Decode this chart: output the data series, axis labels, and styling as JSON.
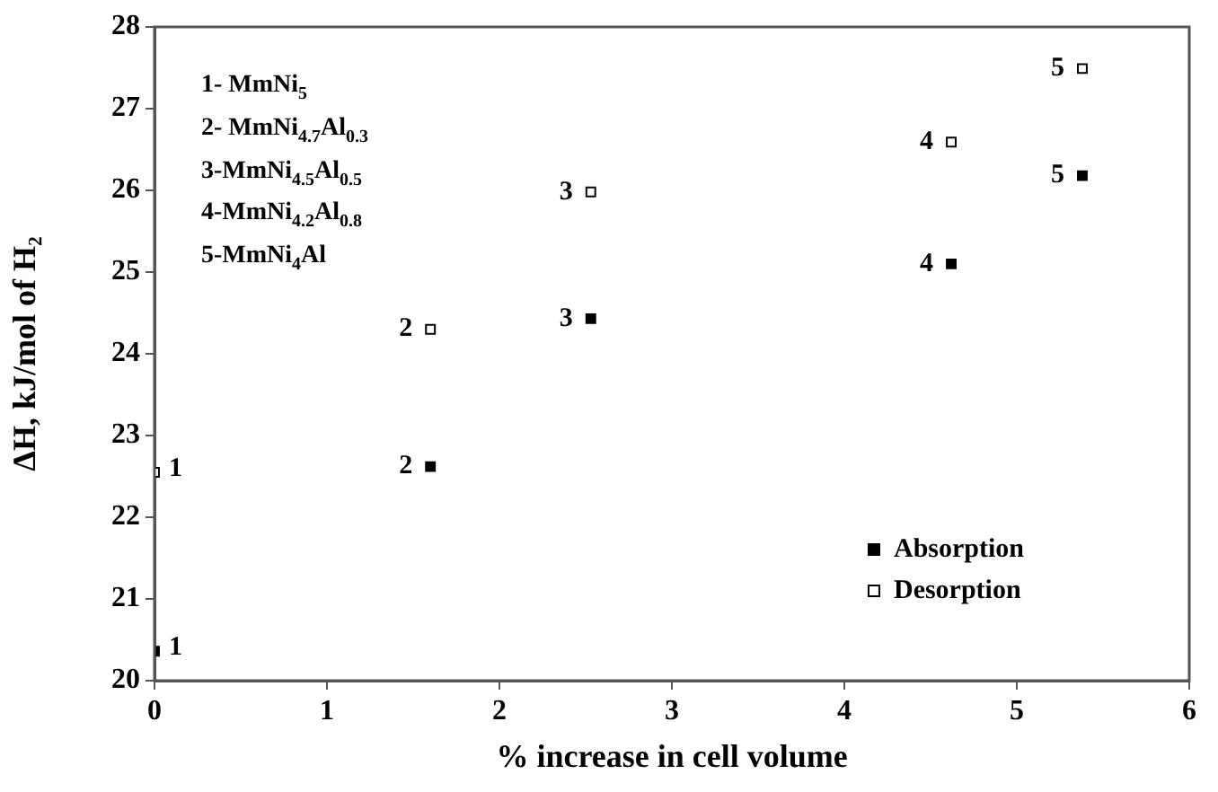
{
  "chart_data": {
    "type": "scatter",
    "xlabel": "% increase in cell volume",
    "ylabel": "ΔH, kJ/mol of H₂",
    "xlim": [
      0,
      6
    ],
    "xticks": [
      0,
      1,
      2,
      3,
      4,
      5,
      6
    ],
    "ylim": [
      20,
      28
    ],
    "yticks": [
      20,
      21,
      22,
      23,
      24,
      25,
      26,
      27,
      28
    ],
    "grid": false,
    "legend": "bottom right",
    "marker": "square",
    "series": [
      {
        "name": "Absorption",
        "color": "#000000",
        "x": [
          0,
          1.6,
          2.53,
          4.62,
          5.38
        ],
        "values": [
          20.36,
          22.62,
          24.43,
          25.1,
          26.18
        ]
      },
      {
        "name": "Desorption",
        "color": "#000000",
        "x": [
          0,
          1.6,
          2.53,
          4.62,
          5.38
        ],
        "values": [
          22.55,
          24.3,
          25.98,
          26.59,
          27.49
        ]
      }
    ],
    "annotations": [
      "1- MmNi$_{5}$",
      "2- MmNi$_{4.7}$Al$_{0.3}$",
      "3-MmNi$_{4.5}$Al$_{0.5}$",
      "4-MmNi$_{4.2}$Al$_{0.8}$",
      "5-MmNi$_{4}$Al",
      {
        "text": "1",
        "x": 0,
        "y": 20.36
      },
      {
        "text": "2",
        "x": 1.6,
        "y": 22.62
      },
      {
        "text": "3",
        "x": 2.53,
        "y": 24.43
      },
      {
        "text": "4",
        "x": 4.62,
        "y": 25.1
      },
      {
        "text": "5",
        "x": 5.38,
        "y": 26.18
      },
      {
        "text": "1",
        "x": 0,
        "y": 22.55
      },
      {
        "text": "2",
        "x": 1.6,
        "y": 24.3
      },
      {
        "text": "3",
        "x": 2.53,
        "y": 25.98
      },
      {
        "text": "4",
        "x": 4.62,
        "y": 26.59
      },
      {
        "text": "5",
        "x": 5.38,
        "y": 27.49
      }
    ]
  }
}
